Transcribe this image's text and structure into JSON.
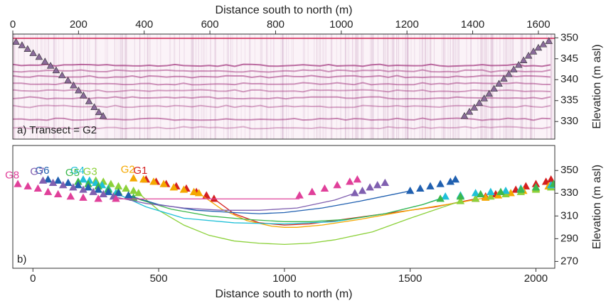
{
  "chart_data": [
    {
      "type": "scatter",
      "xlabel": "Distance south to north (m)",
      "ylabel": "Elevation (m asl)",
      "annotation": "a) Transect = G2",
      "xlim": [
        0,
        1650
      ],
      "ylim": [
        325.8,
        350.9
      ],
      "xticks": [
        0,
        200,
        400,
        600,
        800,
        1000,
        1200,
        1400,
        1600
      ],
      "yticks": [
        330,
        335,
        340,
        345,
        350
      ],
      "series": [
        {
          "color": "#8a6a9a",
          "x": [
            10,
            28,
            45,
            62,
            80,
            98,
            115,
            132,
            150,
            168,
            185,
            200,
            215,
            232,
            248,
            262,
            275,
            1375,
            1390,
            1405,
            1420,
            1435,
            1450,
            1465,
            1480,
            1495,
            1510,
            1525,
            1540,
            1555,
            1570,
            1585,
            1600,
            1615,
            1632
          ],
          "y": [
            349,
            348.2,
            347.3,
            346.3,
            345.4,
            344.3,
            343.3,
            342.2,
            341,
            339.8,
            338.6,
            337.4,
            336.2,
            334.8,
            333.4,
            332.2,
            331.3,
            331.3,
            332.3,
            333.3,
            334.4,
            335.5,
            336.6,
            337.8,
            339,
            340.2,
            341.3,
            342.4,
            343.5,
            344.6,
            345.7,
            346.7,
            347.6,
            348.4,
            349.2
          ]
        }
      ]
    },
    {
      "type": "scatter",
      "xlabel": "Distance south to north (m)",
      "ylabel": "Elevation (m asl)",
      "annotation": "b)",
      "xlim": [
        -80,
        2075
      ],
      "ylim": [
        264,
        372
      ],
      "xticks": [
        0,
        500,
        1000,
        1500,
        2000
      ],
      "yticks": [
        270,
        290,
        310,
        330,
        350
      ],
      "series": [
        {
          "name": "G1",
          "color": "#d42020",
          "x": [
            450,
            490,
            530,
            570,
            610,
            650,
            690,
            720,
            1760,
            1800,
            1840,
            1880,
            1920,
            1960,
            2000,
            2040,
            2060
          ],
          "y": [
            342,
            340,
            338,
            336,
            334,
            331,
            328,
            325,
            325,
            327,
            329,
            331,
            333,
            336,
            338,
            340,
            342
          ],
          "curve_x": [
            720,
            800,
            900,
            1000,
            1100,
            1200,
            1400,
            1600,
            1760
          ],
          "curve_y": [
            325,
            312,
            304,
            302,
            303,
            306,
            312,
            318,
            325
          ]
        },
        {
          "name": "G2",
          "color": "#f5a800",
          "x": [
            400,
            440,
            480,
            520,
            560,
            600,
            640,
            660,
            1800,
            1850,
            1900,
            1950,
            2000,
            2050
          ],
          "y": [
            343,
            342,
            340,
            338,
            335,
            333,
            331,
            330,
            326,
            328,
            330,
            332,
            334,
            336
          ],
          "curve_x": [
            660,
            750,
            850,
            950,
            1000,
            1050,
            1150,
            1300,
            1500,
            1700,
            1800
          ],
          "curve_y": [
            330,
            316,
            306,
            301,
            300,
            300,
            302,
            307,
            315,
            322,
            326
          ]
        },
        {
          "name": "G3",
          "color": "#8cd13a",
          "x": [
            250,
            280,
            310,
            340,
            370,
            400,
            420,
            1700,
            1760,
            1820,
            1880,
            1940,
            2000,
            2060
          ],
          "y": [
            341,
            340,
            338,
            336,
            334,
            332,
            330,
            323,
            325,
            327,
            329,
            331,
            333,
            335
          ],
          "curve_x": [
            420,
            500,
            600,
            700,
            800,
            900,
            1000,
            1100,
            1200,
            1350,
            1500,
            1700
          ],
          "curve_y": [
            330,
            315,
            302,
            293,
            288,
            286,
            285,
            286,
            289,
            296,
            308,
            323
          ]
        },
        {
          "name": "G4",
          "color": "#20c0d8",
          "x": [
            200,
            225,
            250,
            275,
            300,
            330,
            1640,
            1700,
            1760,
            1820,
            1880,
            1940,
            2000,
            2060
          ],
          "y": [
            342,
            341,
            339,
            337,
            334,
            330,
            327,
            328,
            330,
            331,
            332,
            334,
            335,
            337
          ],
          "curve_x": [
            330,
            450,
            600,
            800,
            1000,
            1200,
            1400,
            1550,
            1640
          ],
          "curve_y": [
            330,
            318,
            308,
            304,
            303,
            305,
            312,
            320,
            327
          ]
        },
        {
          "name": "G5",
          "color": "#3cb84c",
          "x": [
            180,
            220,
            260,
            300,
            340,
            380,
            400,
            1620,
            1700,
            1780,
            1860,
            1940,
            2000,
            2070
          ],
          "y": [
            340,
            338,
            336,
            333,
            331,
            328,
            326,
            325,
            327,
            329,
            331,
            333,
            335,
            338
          ],
          "curve_x": [
            400,
            550,
            700,
            850,
            1000,
            1100,
            1250,
            1400,
            1550,
            1620
          ],
          "curve_y": [
            326,
            316,
            310,
            307,
            305,
            305,
            307,
            312,
            320,
            325
          ]
        },
        {
          "name": "G6",
          "color": "#2060b0",
          "x": [
            60,
            100,
            140,
            180,
            220,
            260,
            300,
            340,
            380,
            1500,
            1540,
            1580,
            1620,
            1660,
            1680
          ],
          "y": [
            342,
            341,
            339,
            337,
            335,
            333,
            331,
            330,
            328,
            332,
            334,
            336,
            338,
            340,
            342
          ],
          "curve_x": [
            380,
            500,
            650,
            800,
            900,
            1000,
            1150,
            1300,
            1500
          ],
          "curve_y": [
            328,
            320,
            315,
            313,
            312,
            313,
            317,
            323,
            332
          ]
        },
        {
          "name": "G7",
          "color": "#8060b0",
          "x": [
            40,
            80,
            120,
            160,
            200,
            240,
            280,
            320,
            1280,
            1310,
            1340,
            1370,
            1400
          ],
          "y": [
            341,
            339,
            337,
            335,
            333,
            331,
            329,
            327,
            330,
            332,
            335,
            337,
            339
          ],
          "curve_x": [
            320,
            450,
            600,
            750,
            900,
            1050,
            1200,
            1280
          ],
          "curve_y": [
            327,
            321,
            317,
            315,
            315,
            317,
            324,
            330
          ]
        },
        {
          "name": "G8",
          "color": "#e0409a",
          "x": [
            -60,
            -20,
            20,
            60,
            100,
            150,
            200,
            260,
            330,
            1060,
            1110,
            1160,
            1210,
            1260,
            1290
          ],
          "y": [
            338,
            336,
            334,
            331,
            329,
            327,
            326,
            325,
            325,
            328,
            331,
            334,
            337,
            340,
            342
          ],
          "curve_x": [
            330,
            1060
          ],
          "curve_y": [
            325,
            325
          ]
        }
      ]
    }
  ]
}
